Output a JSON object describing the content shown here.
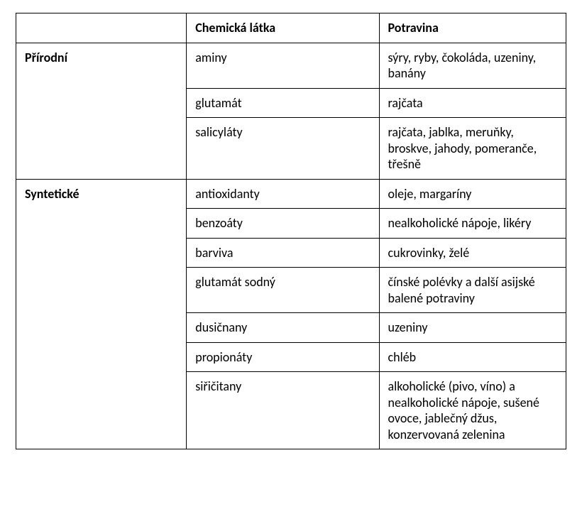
{
  "table": {
    "type": "table",
    "border_color": "#000000",
    "background_color": "#ffffff",
    "text_color": "#000000",
    "font_family": "Calibri, Arial, sans-serif",
    "font_size_pt": 13,
    "columns": [
      {
        "key": "group",
        "label": "",
        "width_pct": 31,
        "bold": true
      },
      {
        "key": "chemical",
        "label": "Chemická látka",
        "width_pct": 35
      },
      {
        "key": "food",
        "label": "Potravina",
        "width_pct": 34
      }
    ],
    "groups": [
      {
        "name": "Přírodní",
        "rows": [
          {
            "chemical": "aminy",
            "food": "sýry, ryby, čokoláda, uzeniny, banány"
          },
          {
            "chemical": "glutamát",
            "food": "rajčata"
          },
          {
            "chemical": "salicyláty",
            "food": "rajčata, jablka, meruňky, broskve, jahody, pomeranče, třešně"
          }
        ]
      },
      {
        "name": "Syntetické",
        "rows": [
          {
            "chemical": "antioxidanty",
            "food": "oleje, margaríny"
          },
          {
            "chemical": "benzoáty",
            "food": "nealkoholické nápoje, likéry"
          },
          {
            "chemical": "barviva",
            "food": "cukrovinky, želé"
          },
          {
            "chemical": "glutamát sodný",
            "food": "čínské polévky a další asijské balené potraviny"
          },
          {
            "chemical": "dusičnany",
            "food": "uzeniny"
          },
          {
            "chemical": "propionáty",
            "food": "chléb"
          },
          {
            "chemical": "siřičitany",
            "food": "alkoholické (pivo, víno) a nealkoholické nápoje, sušené ovoce, jablečný džus, konzervovaná zelenina"
          }
        ]
      }
    ]
  }
}
